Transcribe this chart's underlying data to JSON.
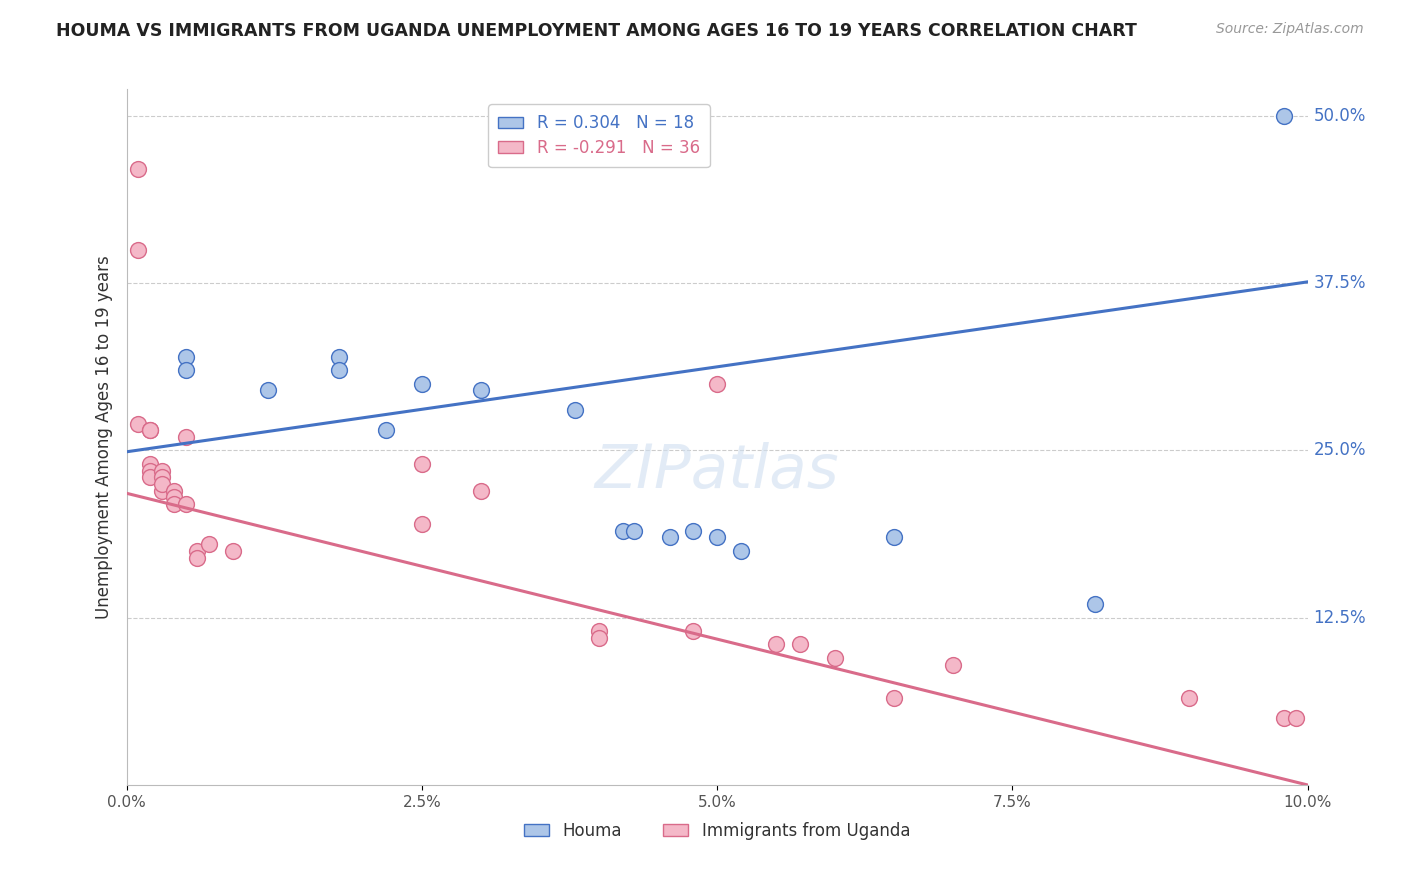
{
  "title": "HOUMA VS IMMIGRANTS FROM UGANDA UNEMPLOYMENT AMONG AGES 16 TO 19 YEARS CORRELATION CHART",
  "source": "Source: ZipAtlas.com",
  "ylabel": "Unemployment Among Ages 16 to 19 years",
  "legend_bottom": [
    "Houma",
    "Immigrants from Uganda"
  ],
  "houma_R": 0.304,
  "houma_N": 18,
  "uganda_R": -0.291,
  "uganda_N": 36,
  "xlim": [
    0.0,
    0.1
  ],
  "ylim": [
    0.0,
    0.52
  ],
  "xtick_labels": [
    "0.0%",
    "2.5%",
    "5.0%",
    "7.5%",
    "10.0%"
  ],
  "xtick_vals": [
    0.0,
    0.025,
    0.05,
    0.075,
    0.1
  ],
  "ytick_labels": [
    "12.5%",
    "25.0%",
    "37.5%",
    "50.0%"
  ],
  "ytick_vals": [
    0.125,
    0.25,
    0.375,
    0.5
  ],
  "houma_color": "#adc6e8",
  "houma_line_color": "#4472c4",
  "uganda_color": "#f4b8c8",
  "uganda_line_color": "#d96b8a",
  "background_color": "#ffffff",
  "grid_color": "#cccccc",
  "houma_line_x0": 0.0,
  "houma_line_y0": 0.249,
  "houma_line_x1": 0.1,
  "houma_line_y1": 0.376,
  "uganda_line_x0": 0.0,
  "uganda_line_y0": 0.218,
  "uganda_line_x1": 0.1,
  "uganda_line_y1": 0.0,
  "houma_points": [
    [
      0.005,
      0.32
    ],
    [
      0.005,
      0.31
    ],
    [
      0.012,
      0.295
    ],
    [
      0.018,
      0.32
    ],
    [
      0.018,
      0.31
    ],
    [
      0.022,
      0.265
    ],
    [
      0.025,
      0.3
    ],
    [
      0.03,
      0.295
    ],
    [
      0.038,
      0.28
    ],
    [
      0.042,
      0.19
    ],
    [
      0.043,
      0.19
    ],
    [
      0.046,
      0.185
    ],
    [
      0.048,
      0.19
    ],
    [
      0.05,
      0.185
    ],
    [
      0.052,
      0.175
    ],
    [
      0.065,
      0.185
    ],
    [
      0.082,
      0.135
    ],
    [
      0.098,
      0.5
    ]
  ],
  "uganda_points": [
    [
      0.001,
      0.46
    ],
    [
      0.001,
      0.4
    ],
    [
      0.001,
      0.27
    ],
    [
      0.002,
      0.265
    ],
    [
      0.002,
      0.265
    ],
    [
      0.002,
      0.24
    ],
    [
      0.002,
      0.235
    ],
    [
      0.002,
      0.23
    ],
    [
      0.003,
      0.235
    ],
    [
      0.003,
      0.23
    ],
    [
      0.003,
      0.22
    ],
    [
      0.003,
      0.225
    ],
    [
      0.004,
      0.22
    ],
    [
      0.004,
      0.215
    ],
    [
      0.004,
      0.21
    ],
    [
      0.005,
      0.26
    ],
    [
      0.005,
      0.21
    ],
    [
      0.006,
      0.175
    ],
    [
      0.006,
      0.17
    ],
    [
      0.007,
      0.18
    ],
    [
      0.009,
      0.175
    ],
    [
      0.025,
      0.24
    ],
    [
      0.025,
      0.195
    ],
    [
      0.03,
      0.22
    ],
    [
      0.04,
      0.115
    ],
    [
      0.04,
      0.11
    ],
    [
      0.048,
      0.115
    ],
    [
      0.05,
      0.3
    ],
    [
      0.055,
      0.105
    ],
    [
      0.057,
      0.105
    ],
    [
      0.06,
      0.095
    ],
    [
      0.065,
      0.065
    ],
    [
      0.07,
      0.09
    ],
    [
      0.09,
      0.065
    ],
    [
      0.098,
      0.05
    ],
    [
      0.099,
      0.05
    ]
  ]
}
